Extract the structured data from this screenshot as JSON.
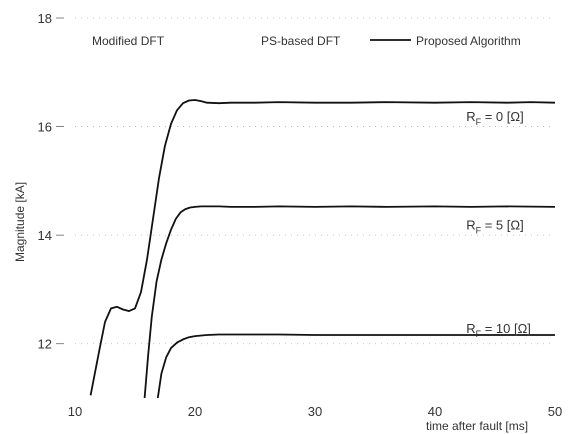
{
  "chart_data": {
    "type": "line",
    "title": "",
    "xlabel": "time after fault [ms]",
    "ylabel": "Magnitude [kA]",
    "xlim": [
      10,
      50
    ],
    "ylim": [
      11,
      18
    ],
    "x_ticks": [
      "10",
      "20",
      "30",
      "40",
      "50"
    ],
    "y_ticks": [
      "12",
      "14",
      "16",
      "18"
    ],
    "legend": {
      "placement": "top",
      "entries": [
        "Modified DFT",
        "PS-based DFT",
        "Proposed Algorithm"
      ]
    },
    "annotations": [
      {
        "prefix": "R",
        "sub": "F",
        "suffix": " = 0 [Ω]",
        "x": 42.6,
        "y": 16.1
      },
      {
        "prefix": "R",
        "sub": "F",
        "suffix": " = 5 [Ω]",
        "x": 42.6,
        "y": 14.1
      },
      {
        "prefix": "R",
        "sub": "F",
        "suffix": " = 10 [Ω]",
        "x": 42.6,
        "y": 12.2
      }
    ],
    "series": [
      {
        "color": "#111111",
        "x": [
          11.3,
          12.0,
          12.5,
          13.0,
          13.5,
          14.0,
          14.5,
          15.0,
          15.5,
          16.0,
          16.5,
          17.0,
          17.5,
          18.0,
          18.5,
          19.0,
          19.5,
          20.0,
          20.5,
          21.0,
          22.0,
          23.0,
          25.0,
          27.0,
          30.0,
          33.0,
          36.0,
          40.0,
          43.0,
          46.0,
          48.0,
          50.0
        ],
        "y": [
          11.05,
          11.85,
          12.4,
          12.65,
          12.68,
          12.63,
          12.6,
          12.65,
          12.95,
          13.55,
          14.3,
          15.05,
          15.65,
          16.05,
          16.3,
          16.43,
          16.48,
          16.49,
          16.47,
          16.44,
          16.43,
          16.44,
          16.44,
          16.45,
          16.44,
          16.44,
          16.45,
          16.44,
          16.45,
          16.44,
          16.45,
          16.44
        ]
      },
      {
        "color": "#111111",
        "x": [
          15.8,
          16.1,
          16.4,
          16.8,
          17.2,
          17.6,
          18.0,
          18.4,
          18.8,
          19.2,
          19.6,
          20.0,
          20.5,
          21.0,
          22.0,
          23.0,
          25.0,
          27.0,
          30.0,
          33.0,
          36.0,
          40.0,
          43.0,
          46.0,
          50.0
        ],
        "y": [
          11.0,
          11.8,
          12.5,
          13.15,
          13.55,
          13.85,
          14.1,
          14.3,
          14.42,
          14.48,
          14.51,
          14.52,
          14.53,
          14.53,
          14.53,
          14.52,
          14.52,
          14.53,
          14.52,
          14.53,
          14.52,
          14.53,
          14.52,
          14.53,
          14.52
        ]
      },
      {
        "color": "#111111",
        "x": [
          16.9,
          17.2,
          17.6,
          18.0,
          18.5,
          19.0,
          19.5,
          20.0,
          21.0,
          22.0,
          23.0,
          25.0,
          27.0,
          30.0,
          33.0,
          36.0,
          40.0,
          43.0,
          46.0,
          50.0
        ],
        "y": [
          11.0,
          11.45,
          11.75,
          11.92,
          12.02,
          12.08,
          12.12,
          12.14,
          12.16,
          12.17,
          12.17,
          12.17,
          12.17,
          12.16,
          12.16,
          12.16,
          12.16,
          12.16,
          12.16,
          12.16
        ]
      }
    ]
  }
}
